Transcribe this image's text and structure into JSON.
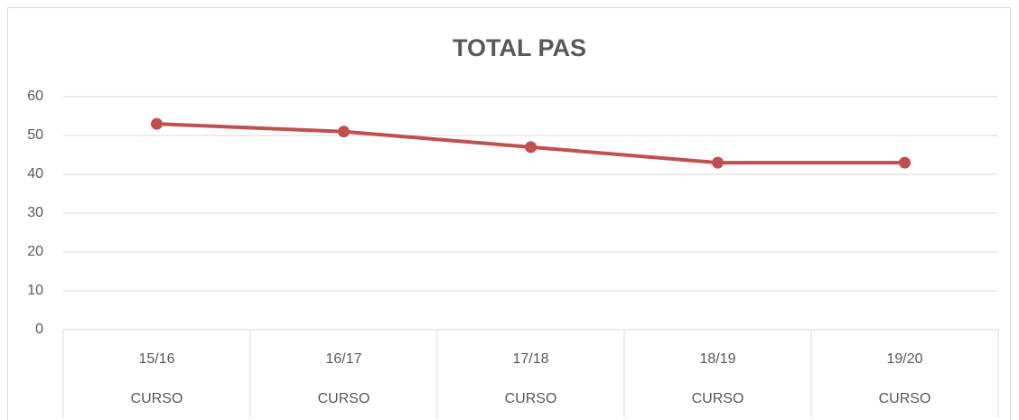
{
  "chart_data": {
    "type": "line",
    "title": "TOTAL PAS",
    "categories": [
      "15/16",
      "16/17",
      "17/18",
      "18/19",
      "19/20"
    ],
    "category_groups": [
      "CURSO",
      "CURSO",
      "CURSO",
      "CURSO",
      "CURSO"
    ],
    "series": [
      {
        "name": "TOTAL PAS",
        "color": "#c0504d",
        "values": [
          53,
          51,
          47,
          43,
          43
        ]
      }
    ],
    "ylim": [
      0,
      60
    ],
    "yticks": [
      0,
      10,
      20,
      30,
      40,
      50,
      60
    ],
    "grid": true
  }
}
